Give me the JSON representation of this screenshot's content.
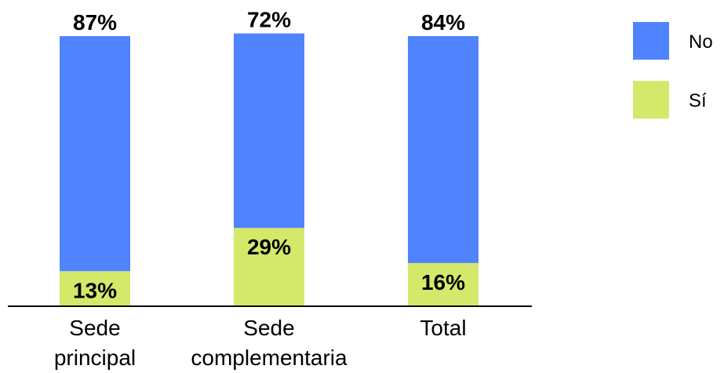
{
  "chart_data": {
    "type": "bar",
    "stacked": true,
    "categories": [
      [
        "Sede",
        "principal"
      ],
      [
        "Sede",
        "complementaria"
      ],
      [
        "Total"
      ]
    ],
    "series": [
      {
        "name": "Sí",
        "color": "#d4e86a",
        "values": [
          13,
          29,
          16
        ],
        "labels": [
          "13%",
          "29%",
          "16%"
        ]
      },
      {
        "name": "No",
        "color": "#5083ff",
        "values": [
          87,
          72,
          84
        ],
        "labels": [
          "87%",
          "72%",
          "84%"
        ]
      }
    ],
    "ylim": [
      0,
      100
    ],
    "grid": false,
    "legend_position": "top-right"
  }
}
